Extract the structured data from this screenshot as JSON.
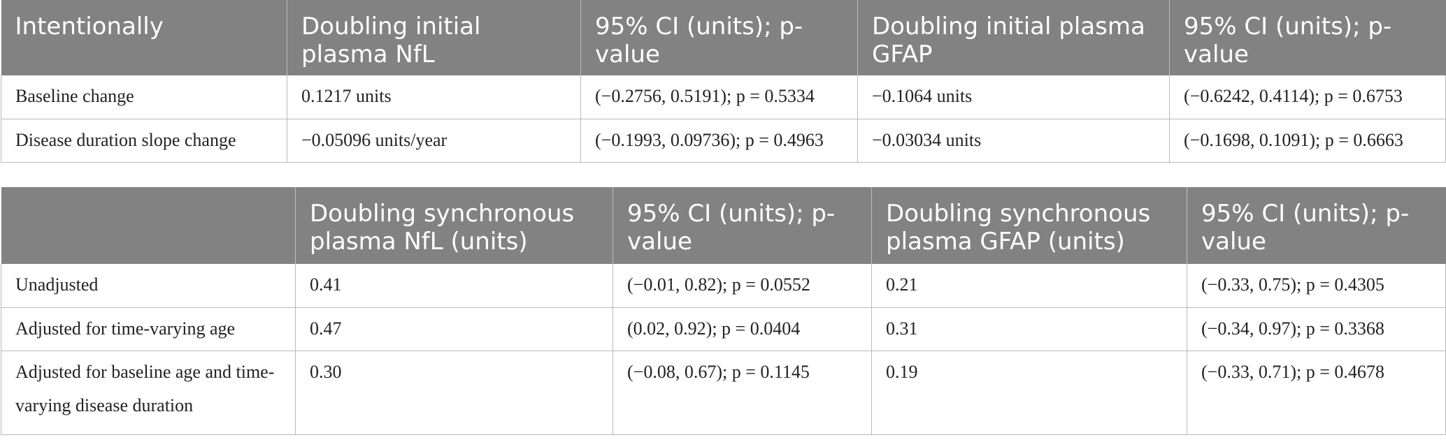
{
  "table1": {
    "headers": [
      "Intentionally",
      "Doubling initial plasma NfL",
      "95% CI (units); p-value",
      "Doubling initial plasma GFAP",
      "95% CI (units); p-value"
    ],
    "rows": [
      [
        "Baseline change",
        "0.1217 units",
        "(−0.2756, 0.5191); p = 0.5334",
        "−0.1064 units",
        "(−0.6242, 0.4114); p = 0.6753"
      ],
      [
        "Disease duration slope change",
        "−0.05096 units/year",
        "(−0.1993, 0.09736); p = 0.4963",
        "−0.03034 units",
        "(−0.1698, 0.1091); p = 0.6663"
      ]
    ]
  },
  "table2": {
    "headers": [
      "",
      "Doubling synchronous plasma NfL (units)",
      "95% CI (units); p-value",
      "Doubling synchronous plasma GFAP (units)",
      "95% CI (units); p-value"
    ],
    "rows": [
      [
        "Unadjusted",
        "0.41",
        "(−0.01, 0.82); p = 0.0552",
        "0.21",
        "(−0.33, 0.75); p = 0.4305"
      ],
      [
        "Adjusted for time-varying age",
        "0.47",
        "(0.02, 0.92); p = 0.0404",
        "0.31",
        "(−0.34, 0.97); p = 0.3368"
      ],
      [
        "Adjusted for baseline age and time-varying disease duration",
        "0.30",
        "(−0.08, 0.67); p = 0.1145",
        "0.19",
        "(−0.33, 0.71); p = 0.4678"
      ]
    ]
  },
  "colors": {
    "header_bg": "#828282",
    "header_text": "#ffffff",
    "border": "#b9b9b9"
  }
}
